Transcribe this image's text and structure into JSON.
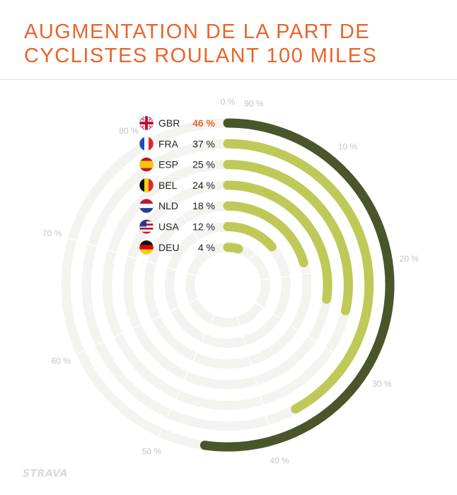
{
  "title_lines": [
    "AUGMENTATION DE LA PART DE",
    "CYCLISTES ROULANT 100 MILES"
  ],
  "logo": "STRAVA",
  "colors": {
    "title": "#e8652a",
    "highlight_arc": "#4a5529",
    "arc": "#bfc957",
    "track": "#f4f3f0",
    "tick_label": "#c4c4c4",
    "highlight_value": "#e8652a",
    "text": "#222222"
  },
  "chart_data": {
    "type": "radial-bar",
    "title": "AUGMENTATION DE LA PART DE CYCLISTES ROULANT 100 MILES",
    "scale_max": 88,
    "ticks": [
      {
        "value": 0,
        "label": "0 %"
      },
      {
        "value": 10,
        "label": "10 %"
      },
      {
        "value": 20,
        "label": "20 %"
      },
      {
        "value": 30,
        "label": "30 %"
      },
      {
        "value": 40,
        "label": "40 %"
      },
      {
        "value": 50,
        "label": "50 %"
      },
      {
        "value": 60,
        "label": "60 %"
      },
      {
        "value": 70,
        "label": "70 %"
      },
      {
        "value": 80,
        "label": "80 %"
      },
      {
        "value": 90,
        "label": "90 %"
      }
    ],
    "categories": [
      "GBR",
      "FRA",
      "ESP",
      "BEL",
      "NLD",
      "USA",
      "DEU"
    ],
    "values": [
      46,
      37,
      25,
      24,
      18,
      12,
      4
    ],
    "value_labels": [
      "46 %",
      "37 %",
      "25 %",
      "24 %",
      "18 %",
      "12 %",
      "4 %"
    ],
    "flags": [
      "uk-flag-icon",
      "france-flag-icon",
      "spain-flag-icon",
      "belgium-flag-icon",
      "netherlands-flag-icon",
      "usa-flag-icon",
      "germany-flag-icon"
    ],
    "highlight": "GBR"
  }
}
